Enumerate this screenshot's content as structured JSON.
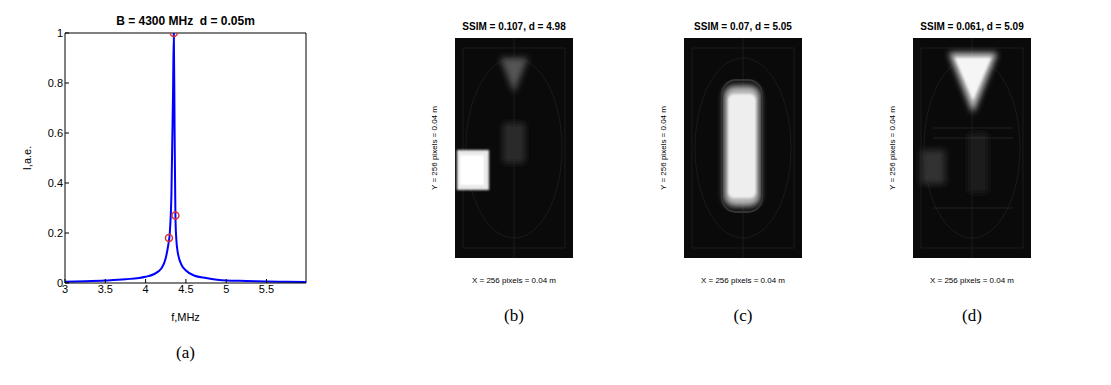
{
  "chart_data": {
    "type": "line",
    "title": "B = 4300 MHz  d = 0.05m",
    "caption": "(a)",
    "x_label": "f,MHz",
    "y_label": "I,a.e.",
    "xlim": [
      3,
      5.99
    ],
    "xticks": [
      3,
      3.5,
      4,
      4.5,
      5,
      5.5
    ],
    "ylim": [
      0,
      1
    ],
    "yticks": [
      0,
      0.2,
      0.4,
      0.6,
      0.8,
      1
    ],
    "grid": false,
    "series": [
      {
        "type": "line",
        "color": "#0000ff",
        "line_style": "solid",
        "x": [
          3,
          3.25,
          3.5,
          3.75,
          4,
          4.1,
          4.2,
          4.25,
          4.28,
          4.3,
          4.32,
          4.34,
          4.35,
          4.36,
          4.37,
          4.38,
          4.4,
          4.45,
          4.5,
          4.6,
          4.75,
          5,
          5.25,
          5.5,
          5.75,
          5.99
        ],
        "values": [
          0.005,
          0.007,
          0.01,
          0.015,
          0.025,
          0.035,
          0.06,
          0.1,
          0.15,
          0.2,
          0.35,
          0.75,
          1.0,
          0.6,
          0.27,
          0.18,
          0.12,
          0.07,
          0.05,
          0.03,
          0.02,
          0.01,
          0.008,
          0.006,
          0.005,
          0.004
        ]
      },
      {
        "type": "scatter",
        "color": "#e03030",
        "marker": "circle",
        "x": [
          4.29,
          4.35,
          4.37
        ],
        "values": [
          0.18,
          1.0,
          0.27
        ]
      }
    ]
  },
  "images": [
    {
      "title": "SSIM = 0.107, d = 4.98",
      "x_label": "X = 256 pixels = 0.04 m",
      "y_label": "Y = 256 pixels = 0.04 m",
      "caption": "(b)"
    },
    {
      "title": "SSIM = 0.07, d = 5.05",
      "x_label": "X = 256 pixels = 0.04 m",
      "y_label": "Y = 256 pixels = 0.04 m",
      "caption": "(c)"
    },
    {
      "title": "SSIM = 0.061, d = 5.09",
      "x_label": "X = 256 pixels = 0.04 m",
      "y_label": "Y = 256 pixels = 0.04 m",
      "caption": "(d)"
    }
  ]
}
